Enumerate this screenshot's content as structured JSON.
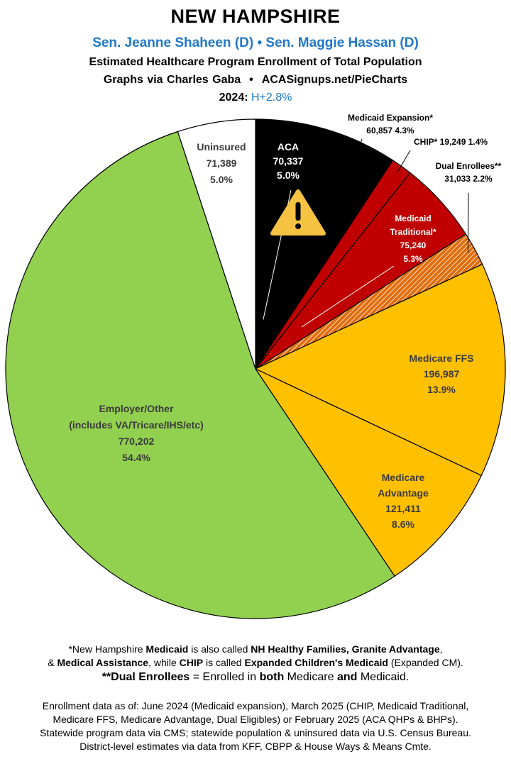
{
  "header": {
    "title": "NEW HAMPSHIRE",
    "senators": "Sen. Jeanne Shaheen (D) • Sen. Maggie Hassan (D)",
    "subtitle": "Estimated Healthcare Program Enrollment of Total Population",
    "credit_left": "Graphs via Charles Gaba",
    "credit_sep": "•",
    "credit_right": "ACASignups.net/PieCharts",
    "year_label": "2024:",
    "lean": "H+2.8%"
  },
  "chart_data": {
    "type": "pie",
    "start_angle_deg": 0,
    "direction": "clockwise",
    "slices": [
      {
        "name": "ACA",
        "value": 70337,
        "pct": "5.0%",
        "color": "#000000",
        "label_color": "#ffffff",
        "warning_icon": true
      },
      {
        "name": "Medicaid Expansion*",
        "value": 60857,
        "pct": "4.3%",
        "color": "#000000",
        "label_color": "#000000"
      },
      {
        "name": "CHIP*",
        "value": 19249,
        "pct": "1.4%",
        "color": "#c00000",
        "label_color": "#000000"
      },
      {
        "name": "Medicaid Traditional*",
        "value": 75240,
        "pct": "5.3%",
        "color": "#c00000",
        "label_color": "#ffffff"
      },
      {
        "name": "Dual Enrollees**",
        "value": 31033,
        "pct": "2.2%",
        "color": "#e36c09",
        "pattern": "hatch",
        "label_color": "#000000"
      },
      {
        "name": "Medicare FFS",
        "value": 196987,
        "pct": "13.9%",
        "color": "#ffc000",
        "label_color": "#3a3a3a"
      },
      {
        "name": "Medicare Advantage",
        "value": 121411,
        "pct": "8.6%",
        "color": "#ffc000",
        "label_color": "#3a3a3a"
      },
      {
        "name": "Employer/Other",
        "value": 770202,
        "pct": "54.4%",
        "color": "#92d050",
        "label_color": "#3a3a3a"
      },
      {
        "name": "Uninsured",
        "value": 71389,
        "pct": "5.0%",
        "color": "#ffffff",
        "label_color": "#3a3a3a"
      }
    ],
    "labels": {
      "aca": [
        "ACA",
        "70,337",
        "5.0%"
      ],
      "medicaid_expansion": [
        "Medicaid Expansion*",
        "60,857 4.3%"
      ],
      "chip": [
        "CHIP* 19,249 1.4%"
      ],
      "dual": [
        "Dual Enrollees**",
        "31,033 2.2%"
      ],
      "medicaid_traditional": [
        "Medicaid",
        "Traditional*",
        "75,240",
        "5.3%"
      ],
      "medicare_ffs": [
        "Medicare FFS",
        "196,987",
        "13.9%"
      ],
      "medicare_advantage": [
        "Medicare",
        "Advantage",
        "121,411",
        "8.6%"
      ],
      "employer": [
        "Employer/Other",
        "(includes VA/Tricare/IHS/etc)",
        "770,202",
        "54.4%"
      ],
      "uninsured": [
        "Uninsured",
        "71,389",
        "5.0%"
      ]
    }
  },
  "footnotes": {
    "n1_a": "*New Hampshire ",
    "n1_b": "Medicaid",
    "n1_c": " is also called ",
    "n1_d": "NH Healthy Families, Granite Advantage",
    "n1_e": ",",
    "n2_a": "& ",
    "n2_b": "Medical Assistance",
    "n2_c": ", while ",
    "n2_d": "CHIP",
    "n2_e": " is called ",
    "n2_f": "Expanded Children's Medicaid",
    "n2_g": " (Expanded CM).",
    "n3_a": "**Dual Enrollees",
    "n3_b": " = Enrolled in ",
    "n3_c": "both",
    "n3_d": " Medicare ",
    "n3_e": "and",
    "n3_f": " Medicaid.",
    "src1": "Enrollment data as of: June 2024 (Medicaid expansion), March 2025 (CHIP, Medicaid Traditional,",
    "src2": "Medicare FFS, Medicare Advantage, Dual Eligibles) or February 2025 (ACA QHPs & BHPs).",
    "src3": "Statewide program data via CMS; statewide population & uninsured data via U.S. Census Bureau.",
    "src4": "District-level estimates via data from KFF, CBPP & House Ways & Means Cmte."
  }
}
